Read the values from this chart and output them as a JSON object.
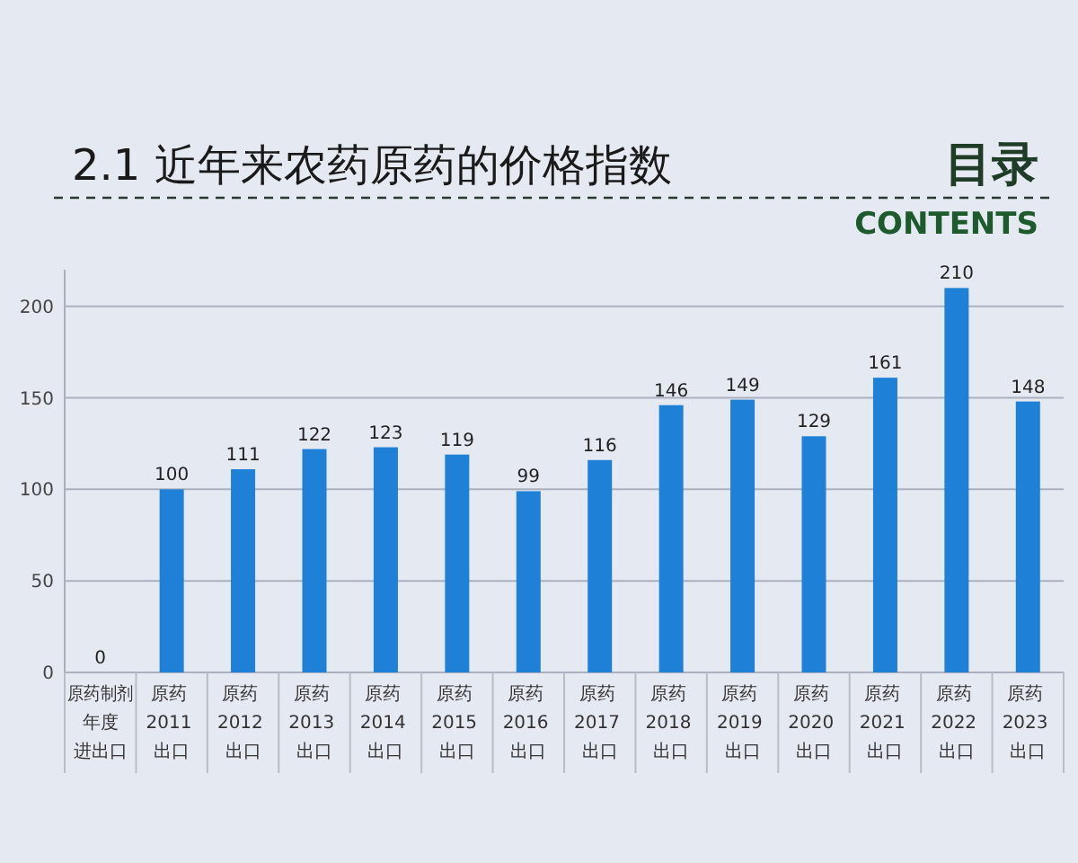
{
  "chart_data": {
    "type": "bar",
    "title": "2.1 近年来农药原药的价格指数",
    "annotations": [
      "目录",
      "CONTENTS",
      "原药制剂",
      "年度",
      "进出口"
    ],
    "categories": [
      null,
      "原药 2011 出口",
      "原药 2012 出口",
      "原药 2013 出口",
      "原药 2014 出口",
      "原药 2015 出口",
      "原药 2016 出口",
      "原药 2017 出口",
      "原药 2018 出口",
      "原药 2019 出口",
      "原药 2020 出口",
      "原药 2021 出口",
      "原药 2022 出口",
      "原药 2023 出口"
    ],
    "values": [
      0,
      100,
      111,
      122,
      123,
      119,
      99,
      116,
      146,
      149,
      129,
      161,
      210,
      148
    ],
    "color": "#1f80d8",
    "ylim": [
      0,
      220
    ],
    "yticks": [
      0,
      50,
      100,
      150,
      200
    ],
    "grid": "y",
    "data_labels": true
  }
}
